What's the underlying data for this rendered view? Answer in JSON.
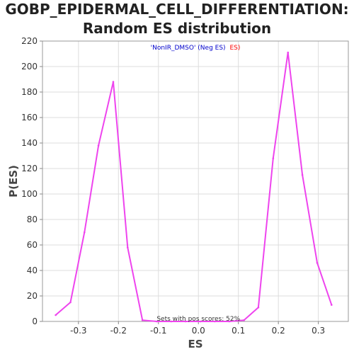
{
  "chart_data": {
    "type": "line",
    "title_line1": "GOBP_EPIDERMAL_CELL_DIFFERENTIATION:",
    "title_line2": "Random ES distribution",
    "xlabel": "ES",
    "ylabel": "P(ES)",
    "xlim": [
      -0.39,
      0.375
    ],
    "ylim": [
      0,
      220
    ],
    "x_ticks": [
      -0.3,
      -0.2,
      -0.1,
      0.0,
      0.1,
      0.2,
      0.3
    ],
    "x_tick_labels": [
      "-0.3",
      "-0.2",
      "-0.1",
      "0.0",
      "0.1",
      "0.2",
      "0.3"
    ],
    "y_ticks": [
      0,
      20,
      40,
      60,
      80,
      100,
      120,
      140,
      160,
      180,
      200,
      220
    ],
    "y_tick_labels": [
      "0",
      "20",
      "40",
      "60",
      "80",
      "100",
      "120",
      "140",
      "160",
      "180",
      "200",
      "220"
    ],
    "grid": true,
    "legend": {
      "placement": "top-center",
      "part1": "'NonIR_DMSO' (Neg ES)",
      "part2": "ES)",
      "color1": "#0000cc",
      "color2": "#ff0000"
    },
    "annotation": "Sets with pos scores: 52%",
    "line_color": "#ee44ee",
    "series": [
      {
        "x": [
          -0.357,
          -0.32,
          -0.285,
          -0.25,
          -0.213,
          -0.177,
          -0.14,
          -0.104,
          -0.068,
          -0.032,
          0.005,
          0.041,
          0.077,
          0.114,
          0.15,
          0.187,
          0.224,
          0.26,
          0.297,
          0.333
        ],
        "y": [
          5,
          15,
          70,
          138,
          188,
          58,
          1,
          0,
          0,
          0,
          0,
          0,
          0,
          1,
          11,
          128,
          211,
          115,
          46,
          13
        ]
      }
    ]
  }
}
